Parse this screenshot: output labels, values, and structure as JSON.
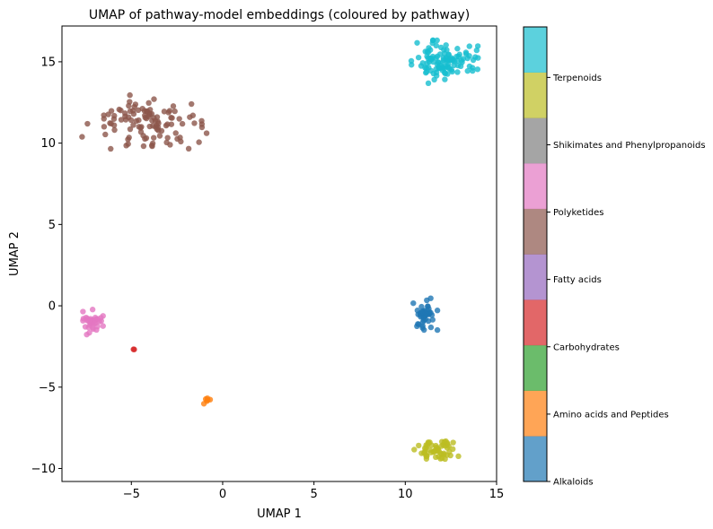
{
  "chart_data": {
    "type": "scatter",
    "title": "UMAP of pathway-model embeddings (coloured by pathway)",
    "xlabel": "UMAP 1",
    "ylabel": "UMAP 2",
    "xlim": [
      -8.8,
      15
    ],
    "ylim": [
      -10.8,
      17.2
    ],
    "xticks": [
      -5,
      0,
      5,
      10,
      15
    ],
    "yticks": [
      -10,
      -5,
      0,
      5,
      10,
      15
    ],
    "xtick_labels": [
      "−5",
      "0",
      "5",
      "10",
      "15"
    ],
    "ytick_labels": [
      "−10",
      "−5",
      "0",
      "5",
      "10",
      "15"
    ],
    "grid": false,
    "colorbar": {
      "labels": [
        "Alkaloids",
        "Amino acids and Peptides",
        "Carbohydrates",
        "Fatty acids",
        "Polyketides",
        "Shikimates and Phenylpropanoids",
        "Terpenoids"
      ],
      "label_positions": [
        0,
        0.889,
        1.778,
        2.667,
        3.556,
        4.444,
        5.333
      ],
      "range": [
        0,
        6
      ],
      "segments": 10,
      "segment_colors": [
        "#1f77b4",
        "#ff7f0e",
        "#2ca02c",
        "#d62728",
        "#9467bd",
        "#8c564b",
        "#e377c2",
        "#7f7f7f",
        "#bcbd22",
        "#17becf"
      ]
    },
    "series": [
      {
        "name": "Alkaloids",
        "color": "#1f77b4",
        "center": [
          11.1,
          -0.5
        ],
        "spread": [
          0.3,
          0.45
        ],
        "n": 45,
        "seed": 11
      },
      {
        "name": "Amino acids and Peptides",
        "color": "#ff7f0e",
        "center": [
          -0.85,
          -5.8
        ],
        "spread": [
          0.08,
          0.1
        ],
        "n": 6,
        "seed": 12
      },
      {
        "name": "Carbohydrates",
        "color": "#d62728",
        "center": [
          -4.85,
          -2.7
        ],
        "spread": [
          0.03,
          0.04
        ],
        "n": 2,
        "seed": 13
      },
      {
        "name": "Fatty acids",
        "color": "#8c564b",
        "center": [
          -4.4,
          11.3
        ],
        "spread": [
          1.6,
          0.75
        ],
        "n": 110,
        "seed": 14
      },
      {
        "name": "Polyketides",
        "color": "#e377c2",
        "center": [
          -7.1,
          -1.0
        ],
        "spread": [
          0.25,
          0.35
        ],
        "n": 35,
        "seed": 15
      },
      {
        "name": "Shikimates and Phenylpropanoids",
        "color": "#bcbd22",
        "center": [
          11.7,
          -8.9
        ],
        "spread": [
          0.55,
          0.3
        ],
        "n": 55,
        "seed": 16
      },
      {
        "name": "Terpenoids",
        "color": "#17becf",
        "center": [
          12.2,
          15.0
        ],
        "spread": [
          0.85,
          0.6
        ],
        "n": 110,
        "seed": 17
      }
    ]
  }
}
